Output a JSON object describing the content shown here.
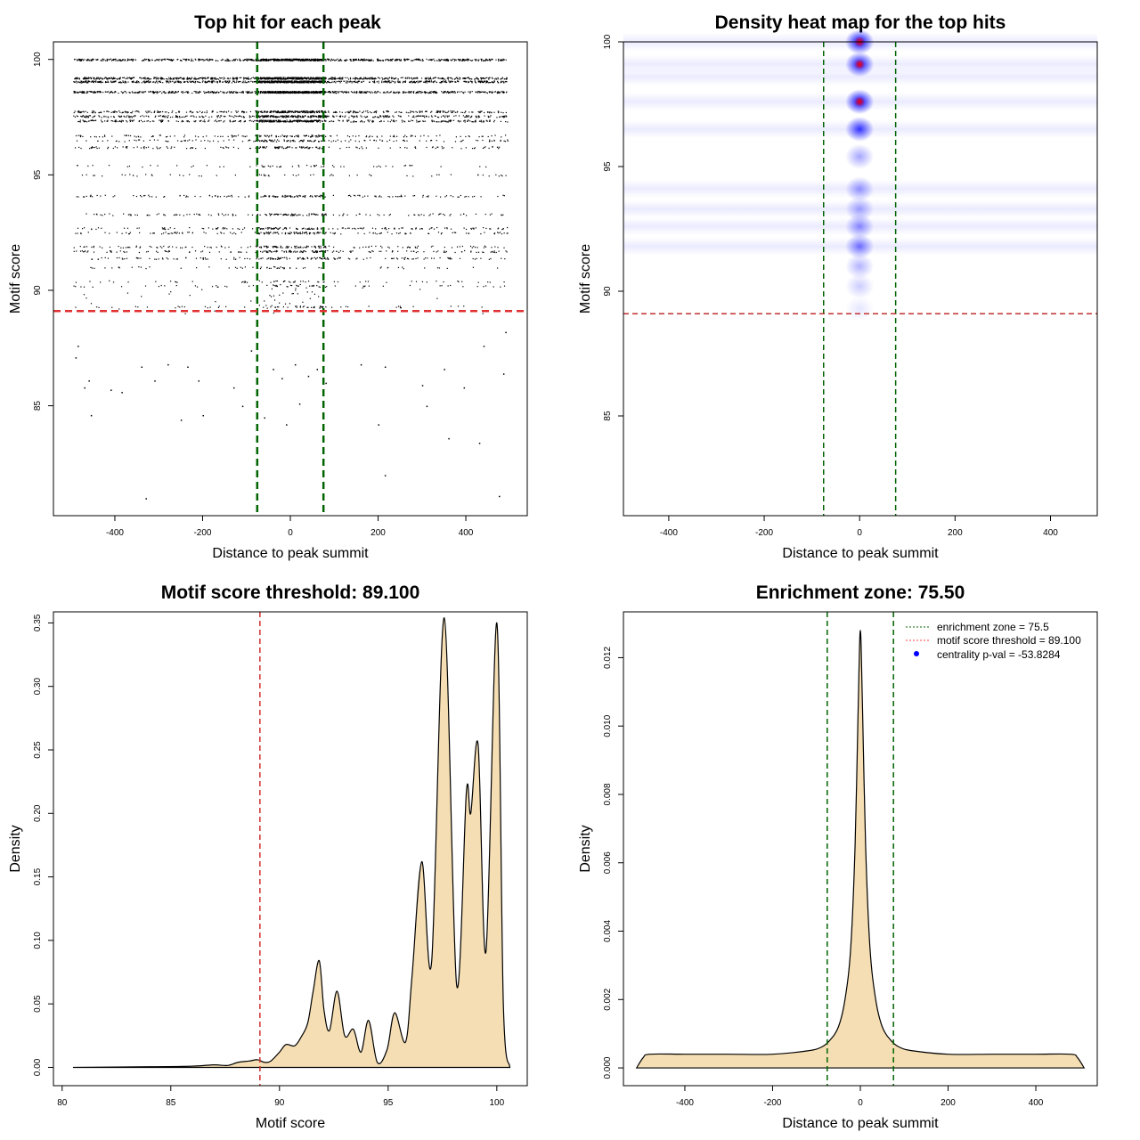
{
  "chart_data": [
    {
      "type": "scatter",
      "title": "Top hit for each peak",
      "xlabel": "Distance to peak summit",
      "ylabel": "Motif score",
      "xlim": [
        -540,
        540
      ],
      "ylim": [
        80.24,
        100.76
      ],
      "xticks": [
        -400,
        -200,
        0,
        200,
        400
      ],
      "yticks": [
        85,
        90,
        95,
        100
      ],
      "vlines": {
        "values": [
          -75.5,
          75.5
        ],
        "color": "#006400",
        "style": "dashed"
      },
      "hline": {
        "value": 89.1,
        "color": "#e03030",
        "style": "dashed"
      },
      "point_color": "#000000",
      "score_levels": [
        {
          "score": 100.0,
          "density": "very high"
        },
        {
          "score": 99.2,
          "density": "very high"
        },
        {
          "score": 99.05,
          "density": "very high"
        },
        {
          "score": 98.6,
          "density": "very high"
        },
        {
          "score": 97.75,
          "density": "high"
        },
        {
          "score": 97.55,
          "density": "high"
        },
        {
          "score": 97.35,
          "density": "high"
        },
        {
          "score": 96.7,
          "density": "medium"
        },
        {
          "score": 96.5,
          "density": "medium"
        },
        {
          "score": 96.2,
          "density": "medium"
        },
        {
          "score": 95.4,
          "density": "low"
        },
        {
          "score": 95.0,
          "density": "low"
        },
        {
          "score": 94.1,
          "density": "medium"
        },
        {
          "score": 93.3,
          "density": "medium"
        },
        {
          "score": 92.7,
          "density": "medium"
        },
        {
          "score": 92.5,
          "density": "medium"
        },
        {
          "score": 91.9,
          "density": "medium"
        },
        {
          "score": 91.7,
          "density": "medium"
        },
        {
          "score": 91.4,
          "density": "medium"
        },
        {
          "score": 91.0,
          "density": "low"
        },
        {
          "score": 90.4,
          "density": "low"
        },
        {
          "score": 90.2,
          "density": "low"
        },
        {
          "score": 89.3,
          "density": "low"
        }
      ],
      "outliers": [
        [
          -490,
          87.1
        ],
        [
          -485,
          87.6
        ],
        [
          -470,
          85.8
        ],
        [
          -460,
          86.1
        ],
        [
          -455,
          84.6
        ],
        [
          -410,
          85.7
        ],
        [
          -385,
          85.6
        ],
        [
          -340,
          86.7
        ],
        [
          -330,
          81.0
        ],
        [
          -310,
          86.1
        ],
        [
          -280,
          86.8
        ],
        [
          -250,
          84.4
        ],
        [
          -235,
          86.7
        ],
        [
          -210,
          86.1
        ],
        [
          -200,
          84.6
        ],
        [
          -130,
          85.8
        ],
        [
          -110,
          85.0
        ],
        [
          -90,
          87.4
        ],
        [
          -60,
          84.5
        ],
        [
          -40,
          86.6
        ],
        [
          -20,
          86.2
        ],
        [
          -10,
          84.2
        ],
        [
          10,
          86.8
        ],
        [
          20,
          85.1
        ],
        [
          40,
          86.3
        ],
        [
          60,
          86.6
        ],
        [
          80,
          86.0
        ],
        [
          160,
          86.8
        ],
        [
          200,
          84.2
        ],
        [
          215,
          82.0
        ],
        [
          215,
          86.7
        ],
        [
          300,
          85.9
        ],
        [
          310,
          85.0
        ],
        [
          350,
          86.6
        ],
        [
          360,
          83.6
        ],
        [
          395,
          85.8
        ],
        [
          430,
          83.4
        ],
        [
          440,
          87.6
        ],
        [
          475,
          81.1
        ],
        [
          485,
          86.4
        ],
        [
          490,
          88.2
        ]
      ]
    },
    {
      "type": "heatmap",
      "title": "Density heat map for the top hits",
      "xlabel": "Distance to peak summit",
      "ylabel": "Motif score",
      "xlim": [
        -495,
        498
      ],
      "ylim": [
        81,
        100
      ],
      "xticks": [
        -400,
        -200,
        0,
        200,
        400
      ],
      "yticks": [
        85,
        90,
        95,
        100
      ],
      "vlines": {
        "values": [
          -75.5,
          75.5
        ],
        "color": "#006400",
        "style": "dashed"
      },
      "hline": {
        "value": 89.1,
        "color": "#c03030",
        "style": "dashed"
      },
      "colors": [
        "#ffffff",
        "#0000ff",
        "#ff0000"
      ],
      "hotspots": [
        {
          "x": 0,
          "score": 100.0,
          "intensity": 1.0
        },
        {
          "x": 0,
          "score": 99.1,
          "intensity": 0.95
        },
        {
          "x": 0,
          "score": 97.6,
          "intensity": 1.0
        },
        {
          "x": 0,
          "score": 96.5,
          "intensity": 0.8
        },
        {
          "x": 0,
          "score": 95.4,
          "intensity": 0.35
        },
        {
          "x": 0,
          "score": 94.1,
          "intensity": 0.4
        },
        {
          "x": 0,
          "score": 93.3,
          "intensity": 0.35
        },
        {
          "x": 0,
          "score": 92.6,
          "intensity": 0.45
        },
        {
          "x": 0,
          "score": 91.8,
          "intensity": 0.55
        },
        {
          "x": 0,
          "score": 91.0,
          "intensity": 0.3
        },
        {
          "x": 0,
          "score": 90.2,
          "intensity": 0.2
        },
        {
          "x": 0,
          "score": 89.3,
          "intensity": 0.1
        }
      ],
      "bands": [
        100.0,
        99.1,
        98.6,
        97.6,
        96.5,
        94.1,
        93.3,
        92.6,
        91.8
      ]
    },
    {
      "type": "area",
      "title": "Motif score threshold: 89.100",
      "xlabel": "Motif score",
      "ylabel": "Density",
      "xlim": [
        79.6,
        101.4
      ],
      "ylim": [
        -0.0144,
        0.3587
      ],
      "xticks": [
        80,
        85,
        90,
        95,
        100
      ],
      "yticks": [
        "0.00",
        "0.05",
        "0.10",
        "0.15",
        "0.20",
        "0.25",
        "0.30",
        "0.35"
      ],
      "fill": "#f5deb3",
      "vline": {
        "value": 89.1,
        "color": "#d03030",
        "style": "dashed"
      },
      "x": [
        80.5,
        84,
        86,
        87,
        87.6,
        88.1,
        88.6,
        89.0,
        89.3,
        89.6,
        90.0,
        90.3,
        90.7,
        91.0,
        91.3,
        91.55,
        91.83,
        92.05,
        92.3,
        92.65,
        93.0,
        93.4,
        93.75,
        94.1,
        94.5,
        94.95,
        95.3,
        95.8,
        96.1,
        96.55,
        97.0,
        97.58,
        98.15,
        98.6,
        98.8,
        99.14,
        99.5,
        100.0,
        100.3,
        100.6
      ],
      "y": [
        0.0,
        0.0005,
        0.001,
        0.002,
        0.0015,
        0.004,
        0.005,
        0.006,
        0.004,
        0.005,
        0.012,
        0.018,
        0.017,
        0.024,
        0.035,
        0.06,
        0.084,
        0.045,
        0.029,
        0.06,
        0.025,
        0.03,
        0.012,
        0.037,
        0.004,
        0.014,
        0.043,
        0.02,
        0.072,
        0.162,
        0.083,
        0.354,
        0.065,
        0.217,
        0.2,
        0.254,
        0.091,
        0.35,
        0.05,
        0.0
      ]
    },
    {
      "type": "area",
      "title": "Enrichment zone: 75.50",
      "xlabel": "Distance to peak summit",
      "ylabel": "Density",
      "xlim": [
        -540,
        540
      ],
      "ylim": [
        -0.00052,
        0.01334
      ],
      "xticks": [
        -400,
        -200,
        0,
        200,
        400
      ],
      "yticks": [
        "0.000",
        "0.002",
        "0.004",
        "0.006",
        "0.008",
        "0.010",
        "0.012"
      ],
      "fill": "#f5deb3",
      "vlines": {
        "values": [
          -75.5,
          75.5
        ],
        "color": "#006400",
        "style": "dashed"
      },
      "x": [
        -510,
        -495,
        -480,
        -400,
        -300,
        -200,
        -120,
        -90,
        -70,
        -50,
        -35,
        -22,
        -12,
        -5,
        0,
        5,
        12,
        22,
        35,
        50,
        70,
        90,
        120,
        200,
        300,
        400,
        480,
        495,
        510
      ],
      "y": [
        0.0,
        0.0003,
        0.0004,
        0.0004,
        0.0004,
        0.0004,
        0.0005,
        0.0006,
        0.0008,
        0.0012,
        0.002,
        0.0035,
        0.0065,
        0.0105,
        0.0128,
        0.0105,
        0.0065,
        0.0035,
        0.002,
        0.0012,
        0.0008,
        0.0006,
        0.0005,
        0.0004,
        0.0004,
        0.0004,
        0.0004,
        0.0003,
        0.0
      ],
      "legend": {
        "position": "top-right",
        "entries": [
          {
            "label": "enrichment zone = 75.5",
            "color": "#006400",
            "marker": "dotted-line"
          },
          {
            "label": "motif score threshold = 89.100",
            "color": "#ff4040",
            "marker": "dotted-line"
          },
          {
            "label": "centrality p-val = -53.8284",
            "color": "#0000ff",
            "marker": "dot"
          }
        ]
      }
    }
  ]
}
